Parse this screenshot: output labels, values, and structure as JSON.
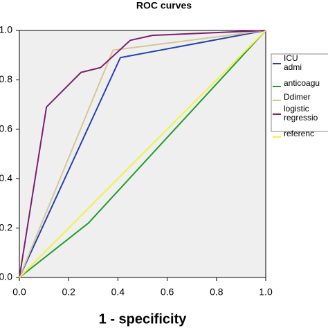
{
  "chart_data": {
    "type": "line",
    "title": "ROC curves",
    "x_label": "1 - specificity",
    "xlim": [
      0,
      1
    ],
    "ylim": [
      0,
      1
    ],
    "xticks": [
      {
        "value": 0,
        "label": "0.0"
      },
      {
        "value": 0.2,
        "label": "0.2"
      },
      {
        "value": 0.4,
        "label": "0.4"
      },
      {
        "value": 0.6,
        "label": "0.6"
      },
      {
        "value": 0.8,
        "label": "0.8"
      },
      {
        "value": 1,
        "label": "1.0"
      }
    ],
    "yticks": [
      {
        "value": 0,
        "label": "0.0"
      },
      {
        "value": 0.2,
        "label": "0.2"
      },
      {
        "value": 0.4,
        "label": "0.4"
      },
      {
        "value": 0.6,
        "label": "0.6"
      },
      {
        "value": 0.8,
        "label": "0.8"
      },
      {
        "value": 1,
        "label": "1.0"
      }
    ],
    "series": [
      {
        "name": "ICU admi",
        "color": "#2541b2",
        "x": [
          0,
          0.41,
          1
        ],
        "values": [
          0,
          0.89,
          1
        ]
      },
      {
        "name": "anticoagu",
        "color": "#1f9e2a",
        "x": [
          0,
          0.28,
          1
        ],
        "values": [
          0,
          0.22,
          1
        ]
      },
      {
        "name": "Ddimer",
        "color": "#d6c794",
        "x": [
          0,
          0.38,
          1
        ],
        "values": [
          0,
          0.92,
          1
        ]
      },
      {
        "name": "logistic regressio",
        "color": "#7b1f70",
        "x": [
          0,
          0.11,
          0.25,
          0.33,
          0.45,
          0.54,
          1
        ],
        "values": [
          0,
          0.69,
          0.83,
          0.85,
          0.96,
          0.98,
          1
        ]
      },
      {
        "name": "referenc",
        "color": "#f2f04a",
        "x": [
          0,
          1
        ],
        "values": [
          0,
          1
        ]
      }
    ]
  }
}
